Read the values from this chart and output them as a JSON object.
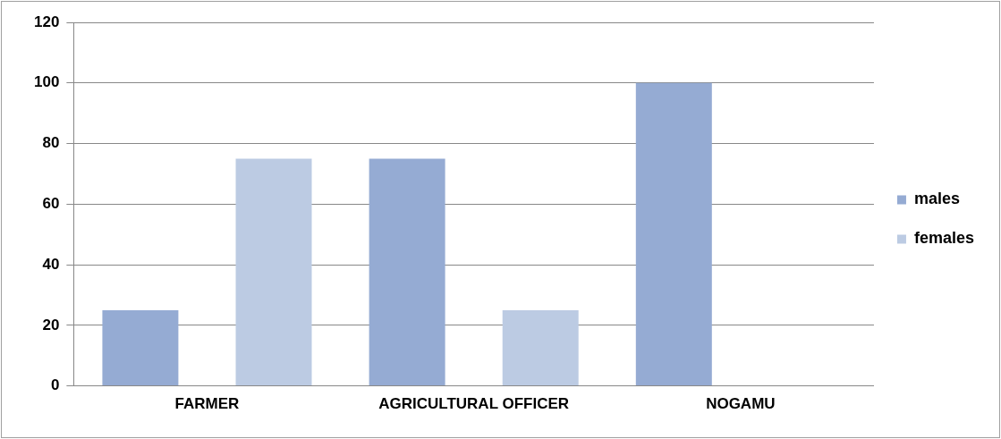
{
  "chart_data": {
    "type": "bar",
    "categories": [
      "FARMER",
      "AGRICULTURAL OFFICER",
      "NOGAMU"
    ],
    "series": [
      {
        "name": "males",
        "color": "#95abd3",
        "values": [
          25,
          75,
          100
        ]
      },
      {
        "name": "females",
        "color": "#bccbe3",
        "values": [
          75,
          25,
          0
        ]
      }
    ],
    "ylim": [
      0,
      120
    ],
    "yticks": [
      0,
      20,
      40,
      60,
      80,
      100,
      120
    ],
    "grid": "y",
    "legend": "right"
  }
}
